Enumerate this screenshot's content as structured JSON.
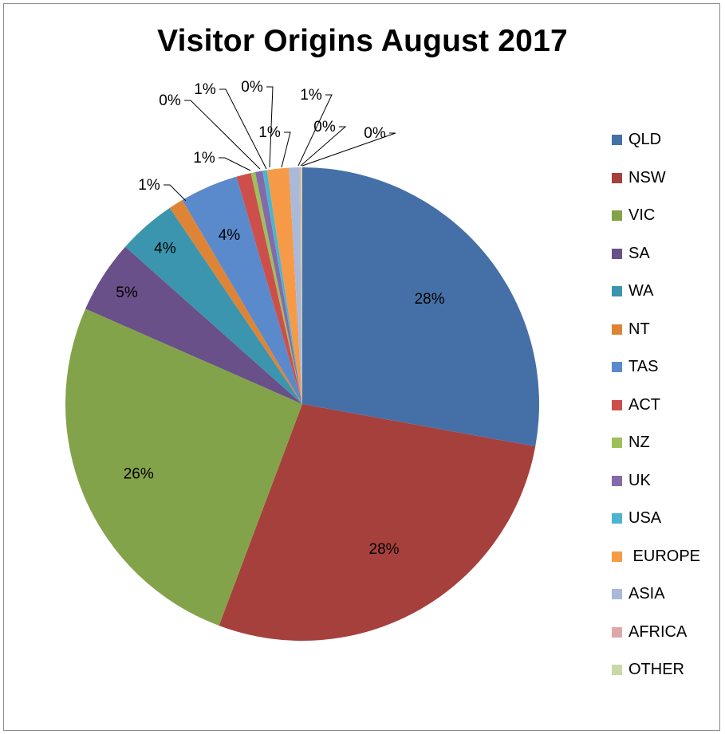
{
  "title": "Visitor Origins August 2017",
  "chart_data": {
    "type": "pie",
    "title": "Visitor Origins August 2017",
    "legend_position": "right",
    "slices": [
      {
        "name": "QLD",
        "value": 28,
        "label": "28%",
        "color": "#4470A7"
      },
      {
        "name": "NSW",
        "value": 28,
        "label": "28%",
        "color": "#A6403D"
      },
      {
        "name": "VIC",
        "value": 26,
        "label": "26%",
        "color": "#83A34A"
      },
      {
        "name": "SA",
        "value": 5,
        "label": "5%",
        "color": "#6A5088"
      },
      {
        "name": "WA",
        "value": 4,
        "label": "4%",
        "color": "#3B95AE"
      },
      {
        "name": "NT",
        "value": 1,
        "label": "1%",
        "color": "#DF8436"
      },
      {
        "name": "TAS",
        "value": 4,
        "label": "4%",
        "color": "#5A8ACB"
      },
      {
        "name": "ACT",
        "value": 1,
        "label": "1%",
        "color": "#CD4F4C"
      },
      {
        "name": "NZ",
        "value": 0.3,
        "label": "0%",
        "color": "#9DC159"
      },
      {
        "name": "UK",
        "value": 0.5,
        "label": "1%",
        "color": "#8469AB"
      },
      {
        "name": "USA",
        "value": 0.3,
        "label": "0%",
        "color": "#4BB5CF"
      },
      {
        "name": "EUROPE",
        "value": 1.5,
        "label": "1%",
        "color": "#F69A48"
      },
      {
        "name": "ASIA",
        "value": 0.7,
        "label": "1%",
        "color": "#A8B9DA"
      },
      {
        "name": "AFRICA",
        "value": 0.1,
        "label": "0%",
        "color": "#DDA9A8"
      },
      {
        "name": "OTHER",
        "value": 0.1,
        "label": "0%",
        "color": "#C6D9A6"
      }
    ],
    "legend_labels": [
      "QLD",
      "NSW",
      "VIC",
      "SA",
      "WA",
      "NT",
      "TAS",
      "ACT",
      "NZ",
      "UK",
      "USA",
      " EUROPE",
      "ASIA",
      "AFRICA",
      "OTHER"
    ]
  }
}
